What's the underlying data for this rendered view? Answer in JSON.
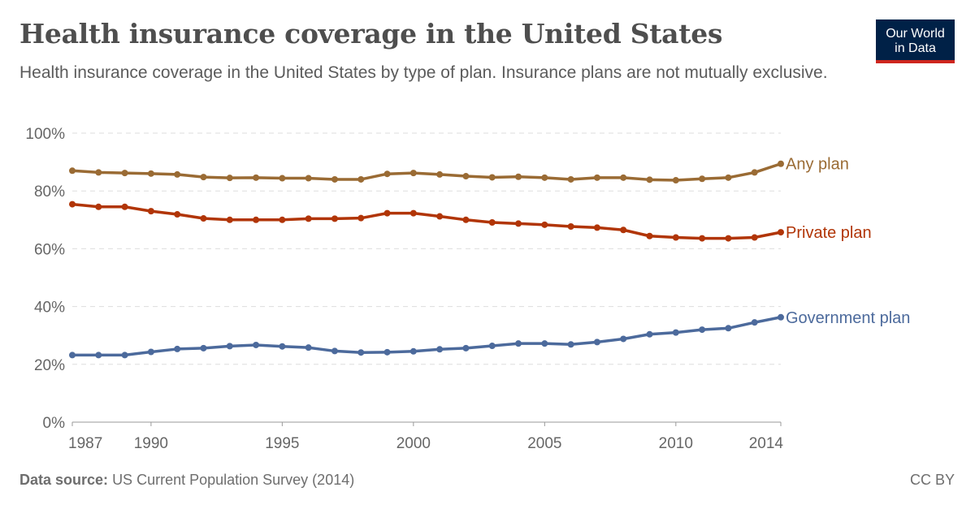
{
  "header": {
    "title": "Health insurance coverage in the United States",
    "subtitle": "Health insurance coverage in the United States by type of plan. Insurance plans are not mutually exclusive."
  },
  "logo": {
    "line1": "Our World",
    "line2": "in Data",
    "colors": {
      "background": "#002147",
      "accent": "#ce261e"
    }
  },
  "footer": {
    "source_label": "Data source:",
    "source": "US Current Population Survey (2014)",
    "license": "CC BY"
  },
  "chart_data": {
    "type": "line",
    "x": [
      1987,
      1988,
      1989,
      1990,
      1991,
      1992,
      1993,
      1994,
      1995,
      1996,
      1997,
      1998,
      1999,
      2000,
      2001,
      2002,
      2003,
      2004,
      2005,
      2006,
      2007,
      2008,
      2009,
      2010,
      2011,
      2012,
      2013,
      2014
    ],
    "xticks": [
      "1987",
      "1990",
      "1995",
      "2000",
      "2005",
      "2010",
      "2014"
    ],
    "yticks": [
      "0%",
      "20%",
      "40%",
      "60%",
      "80%",
      "100%"
    ],
    "ylim": [
      0,
      100
    ],
    "grid": "horizontal dashed",
    "legend": "inline labels at line ends",
    "series": [
      {
        "name": "Any plan",
        "color": "#9a6b34",
        "values": [
          87.0,
          86.4,
          86.2,
          86.0,
          85.7,
          84.8,
          84.5,
          84.6,
          84.4,
          84.4,
          84.0,
          84.0,
          85.9,
          86.2,
          85.7,
          85.1,
          84.7,
          84.9,
          84.6,
          84.0,
          84.6,
          84.6,
          83.9,
          83.7,
          84.2,
          84.6,
          86.4,
          89.4
        ]
      },
      {
        "name": "Private plan",
        "color": "#b13507",
        "values": [
          75.4,
          74.5,
          74.5,
          73.0,
          71.9,
          70.5,
          70.0,
          70.0,
          70.0,
          70.4,
          70.4,
          70.6,
          72.3,
          72.3,
          71.2,
          70.0,
          69.1,
          68.7,
          68.3,
          67.7,
          67.3,
          66.5,
          64.4,
          63.9,
          63.6,
          63.6,
          63.9,
          65.7
        ]
      },
      {
        "name": "Government plan",
        "color": "#4c6a9c",
        "values": [
          23.2,
          23.2,
          23.2,
          24.3,
          25.3,
          25.6,
          26.3,
          26.7,
          26.2,
          25.8,
          24.6,
          24.1,
          24.2,
          24.5,
          25.2,
          25.6,
          26.4,
          27.2,
          27.2,
          26.9,
          27.7,
          28.8,
          30.4,
          31.0,
          32.0,
          32.5,
          34.5,
          36.3
        ]
      }
    ]
  }
}
